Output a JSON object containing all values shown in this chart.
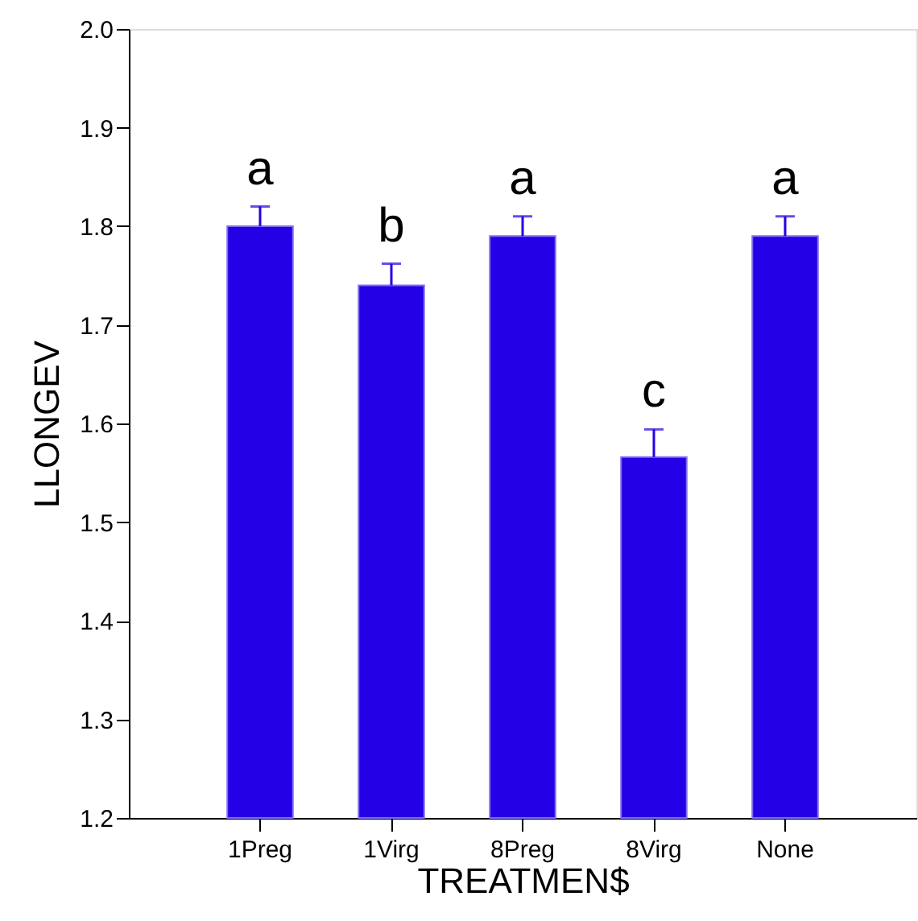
{
  "chart_data": {
    "type": "bar",
    "xlabel": "TREATMEN$",
    "ylabel": "LLONGEV",
    "categories": [
      "1Preg",
      "1Virg",
      "8Preg",
      "8Virg",
      "None"
    ],
    "values": [
      1.8,
      1.74,
      1.79,
      1.566,
      1.79
    ],
    "errors": [
      [
        1.8,
        1.82
      ],
      [
        1.74,
        1.762
      ],
      [
        1.79,
        1.81
      ],
      [
        1.566,
        1.594
      ],
      [
        1.79,
        1.81
      ]
    ],
    "color": "#2400e6",
    "ylim": [
      1.2,
      2.0
    ],
    "yticks": [
      1.2,
      1.3,
      1.4,
      1.5,
      1.6,
      1.7,
      1.8,
      1.9,
      {
        "value": 2.0,
        "label": "2.0"
      }
    ],
    "annotations": [
      "a",
      "b",
      "a",
      "c",
      "a"
    ],
    "grid": false
  }
}
